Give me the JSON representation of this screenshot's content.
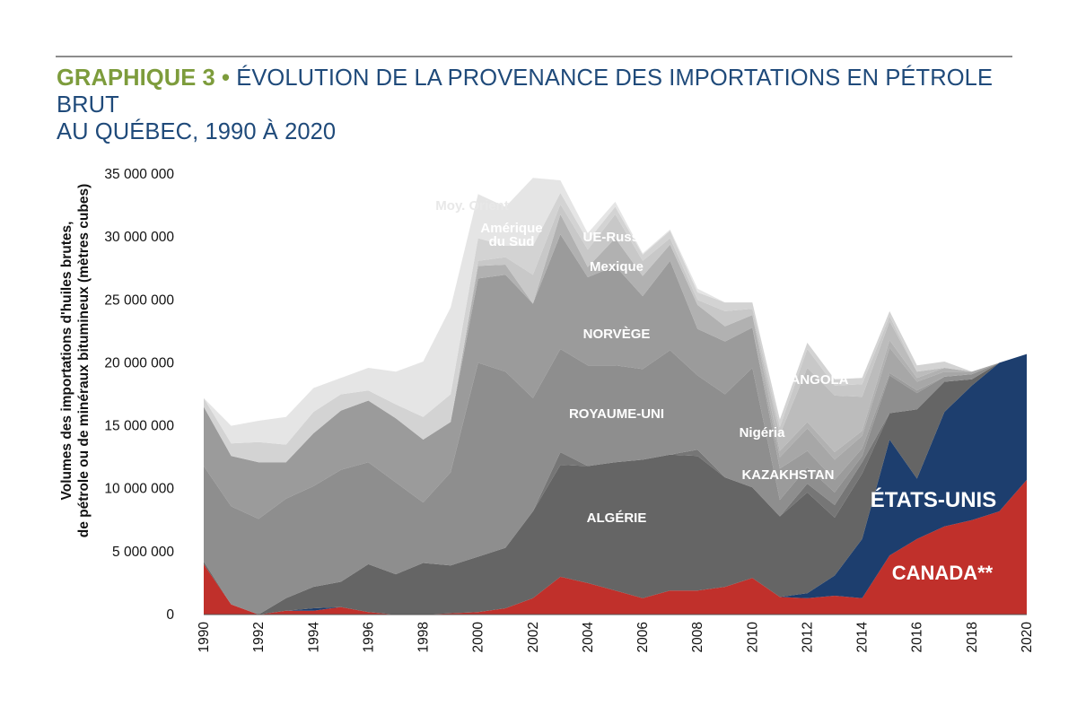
{
  "title": {
    "prefix": "GRAPHIQUE 3",
    "bullet": "•",
    "line1": "ÉVOLUTION DE LA PROVENANCE DES IMPORTATIONS EN PÉTROLE BRUT",
    "line2": "AU QUÉBEC, 1990 À 2020"
  },
  "chart_data": {
    "type": "area",
    "stacked": true,
    "title": "ÉVOLUTION DE LA PROVENANCE DES IMPORTATIONS EN PÉTROLE BRUT AU QUÉBEC, 1990 À 2020",
    "ylabel_lines": [
      "Volumes des importations d'huiles brutes,",
      "de pétrole ou de minéraux bitumineux (mètres cubes)"
    ],
    "xlabel": "",
    "x": [
      1990,
      1991,
      1992,
      1993,
      1994,
      1995,
      1996,
      1997,
      1998,
      1999,
      2000,
      2001,
      2002,
      2003,
      2004,
      2005,
      2006,
      2007,
      2008,
      2009,
      2010,
      2011,
      2012,
      2013,
      2014,
      2015,
      2016,
      2017,
      2018,
      2019,
      2020
    ],
    "x_ticks": [
      "1990",
      "1992",
      "1994",
      "1996",
      "1998",
      "2000",
      "2002",
      "2004",
      "2006",
      "2008",
      "2010",
      "2012",
      "2014",
      "2016",
      "2018",
      "2020"
    ],
    "ylim": [
      0,
      35000000
    ],
    "y_ticks": [
      "35 000 000",
      "30 000 000",
      "25 000 000",
      "20 000 000",
      "15 000 000",
      "10 000 000",
      "5 000 000",
      "0"
    ],
    "series": [
      {
        "name": "CANADA**",
        "color": "#c0302b",
        "values": [
          4000000,
          800000,
          0,
          300000,
          300000,
          600000,
          200000,
          0,
          0,
          100000,
          200000,
          500000,
          1300000,
          3000000,
          2500000,
          1900000,
          1300000,
          1900000,
          1900000,
          2200000,
          2900000,
          1400000,
          1300000,
          1500000,
          1300000,
          4700000,
          6000000,
          7000000,
          7500000,
          8200000,
          10700000
        ]
      },
      {
        "name": "ÉTATS-UNIS",
        "color": "#1d3e6e",
        "values": [
          0,
          0,
          0,
          0,
          200000,
          0,
          0,
          0,
          0,
          0,
          0,
          0,
          0,
          0,
          0,
          0,
          0,
          0,
          0,
          0,
          0,
          0,
          400000,
          1600000,
          4700000,
          9200000,
          4800000,
          9100000,
          10700000,
          11800000,
          10000000
        ]
      },
      {
        "name": "ALGÉRIE",
        "color": "#656565",
        "values": [
          200000,
          0,
          0,
          1000000,
          1700000,
          2000000,
          3800000,
          3200000,
          4100000,
          3800000,
          4400000,
          4800000,
          6900000,
          8900000,
          9300000,
          10200000,
          11000000,
          10800000,
          10700000,
          8700000,
          7200000,
          6400000,
          8000000,
          4600000,
          5200000,
          2100000,
          5500000,
          2400000,
          500000,
          0,
          0
        ]
      },
      {
        "name": "KAZAKHSTAN",
        "color": "#767676",
        "values": [
          0,
          0,
          0,
          0,
          0,
          0,
          0,
          0,
          0,
          0,
          0,
          0,
          0,
          1000000,
          0,
          0,
          0,
          0,
          500000,
          0,
          0,
          0,
          700000,
          1000000,
          900000,
          0,
          0,
          0,
          0,
          0,
          0
        ]
      },
      {
        "name": "ROYAUME-UNI",
        "color": "#8e8e8e",
        "values": [
          7600000,
          7800000,
          7600000,
          7900000,
          8000000,
          8900000,
          8100000,
          7300000,
          4800000,
          7400000,
          15400000,
          14000000,
          9000000,
          8200000,
          8000000,
          7700000,
          7200000,
          8300000,
          5900000,
          6600000,
          9500000,
          1300000,
          1300000,
          1000000,
          500000,
          3000000,
          1300000,
          400000,
          400000,
          0,
          0
        ]
      },
      {
        "name": "NORVÈGE",
        "color": "#9b9b9b",
        "values": [
          4700000,
          4000000,
          4500000,
          2900000,
          4200000,
          4700000,
          4900000,
          5100000,
          5000000,
          4000000,
          6700000,
          7700000,
          7500000,
          9100000,
          7000000,
          7900000,
          5800000,
          7100000,
          3700000,
          4200000,
          3200000,
          2500000,
          1300000,
          1000000,
          600000,
          200000,
          200000,
          0,
          0,
          0,
          0
        ]
      },
      {
        "name": "Nigéria",
        "color": "#a7a7a7",
        "values": [
          0,
          0,
          0,
          0,
          0,
          0,
          0,
          0,
          0,
          0,
          0,
          0,
          0,
          0,
          0,
          0,
          0,
          0,
          0,
          0,
          0,
          900000,
          1800000,
          1600000,
          1000000,
          2000000,
          700000,
          400000,
          200000,
          0,
          0
        ]
      },
      {
        "name": "Mexique",
        "color": "#b1b1b1",
        "values": [
          0,
          0,
          0,
          0,
          0,
          0,
          0,
          0,
          0,
          0,
          1000000,
          800000,
          0,
          1600000,
          800000,
          2200000,
          1600000,
          1300000,
          1900000,
          1200000,
          1000000,
          500000,
          500000,
          600000,
          400000,
          600000,
          300000,
          300000,
          0,
          0,
          0
        ]
      },
      {
        "name": "ANGOLA",
        "color": "#bcbcbc",
        "values": [
          0,
          0,
          0,
          0,
          0,
          0,
          0,
          0,
          0,
          0,
          0,
          0,
          0,
          0,
          0,
          0,
          0,
          0,
          0,
          0,
          0,
          1300000,
          4300000,
          4500000,
          2700000,
          1500000,
          500000,
          0,
          0,
          0,
          0
        ]
      },
      {
        "name": "UE-Russie",
        "color": "#c8c8c8",
        "values": [
          0,
          0,
          0,
          0,
          0,
          0,
          0,
          0,
          0,
          0,
          400000,
          600000,
          2300000,
          800000,
          1400000,
          1900000,
          1200000,
          500000,
          400000,
          1200000,
          500000,
          600000,
          1500000,
          800000,
          1000000,
          400000,
          0,
          0,
          0,
          0,
          0
        ]
      },
      {
        "name": "Amérique du Sud",
        "color": "#d3d3d3",
        "values": [
          700000,
          1000000,
          1600000,
          1400000,
          1700000,
          1300000,
          800000,
          1100000,
          1800000,
          2200000,
          1800000,
          900000,
          2300000,
          900000,
          700000,
          600000,
          500000,
          600000,
          600000,
          700000,
          500000,
          600000,
          500000,
          500000,
          500000,
          400000,
          500000,
          500000,
          0,
          0,
          0
        ]
      },
      {
        "name": "Moy. Orient",
        "color": "#e5e5e5",
        "values": [
          0,
          1400000,
          1700000,
          2200000,
          1900000,
          1300000,
          1800000,
          2600000,
          4400000,
          6900000,
          3500000,
          3100000,
          5400000,
          1000000,
          600000,
          400000,
          100000,
          100000,
          300000,
          0,
          0,
          0,
          0,
          0,
          0,
          0,
          0,
          0,
          0,
          0,
          0
        ]
      }
    ]
  },
  "labels": {
    "canada": "CANADA**",
    "etats_unis": "ÉTATS-UNIS",
    "algerie": "ALGÉRIE",
    "kazakhstan": "KAZAKHSTAN",
    "royaume_uni": "ROYAUME-UNI",
    "norvege": "NORVÈGE",
    "nigeria": "Nigéria",
    "mexique": "Mexique",
    "angola": "ANGOLA",
    "ue_russie": "UE-Russie",
    "amerique_l1": "Amérique",
    "amerique_l2": "du Sud",
    "moy_orient": "Moy. Orient"
  }
}
